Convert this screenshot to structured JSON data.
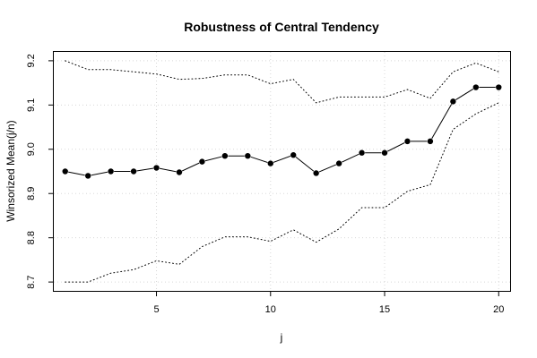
{
  "chart_data": {
    "type": "line",
    "title": "Robustness of Central Tendency",
    "xlabel": "j",
    "ylabel": "Winsorized Mean(j/n)",
    "xlim": [
      0.5,
      20.5
    ],
    "ylim": [
      8.68,
      9.22
    ],
    "xticks": [
      5,
      10,
      15,
      20
    ],
    "yticks": [
      8.7,
      8.8,
      8.9,
      9.0,
      9.1,
      9.2
    ],
    "ytick_labels": [
      "8.7",
      "8.8",
      "8.9",
      "9.0",
      "9.1",
      "9.2"
    ],
    "grid": true,
    "x": [
      1,
      2,
      3,
      4,
      5,
      6,
      7,
      8,
      9,
      10,
      11,
      12,
      13,
      14,
      15,
      16,
      17,
      18,
      19,
      20
    ],
    "series": [
      {
        "style": "line-points",
        "color": "#000000",
        "values": [
          8.95,
          8.94,
          8.95,
          8.95,
          8.958,
          8.948,
          8.972,
          8.985,
          8.985,
          8.968,
          8.987,
          8.946,
          8.968,
          8.992,
          8.992,
          9.018,
          9.018,
          9.108,
          9.14,
          9.14
        ]
      },
      {
        "style": "dotted",
        "color": "#000000",
        "values": [
          9.2,
          9.18,
          9.18,
          9.175,
          9.17,
          9.158,
          9.16,
          9.168,
          9.168,
          9.148,
          9.158,
          9.105,
          9.118,
          9.118,
          9.118,
          9.135,
          9.115,
          9.175,
          9.195,
          9.175
        ]
      },
      {
        "style": "dotted",
        "color": "#000000",
        "values": [
          8.7,
          8.7,
          8.72,
          8.728,
          8.748,
          8.74,
          8.78,
          8.802,
          8.802,
          8.792,
          8.818,
          8.79,
          8.82,
          8.868,
          8.868,
          8.905,
          8.92,
          9.045,
          9.08,
          9.105
        ]
      }
    ]
  }
}
